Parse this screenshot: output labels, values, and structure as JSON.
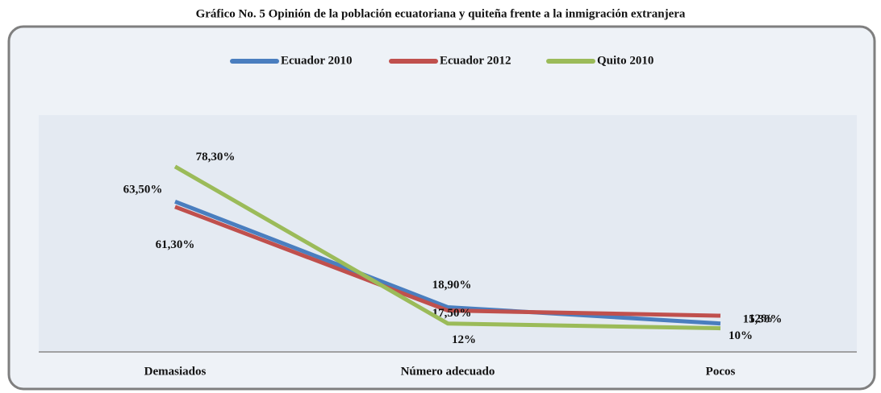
{
  "chart_data": {
    "type": "line",
    "title": "Gráfico No. 5 Opinión de la población ecuatoriana y quiteña frente a la inmigración extranjera",
    "categories": [
      "Demasiados",
      "Número adecuado",
      "Pocos"
    ],
    "series": [
      {
        "name": "Ecuador 2010",
        "color": "#4a7ebf",
        "values": [
          63.5,
          18.9,
          12
        ],
        "value_labels": [
          "63,50%",
          "18,90%",
          "12%"
        ]
      },
      {
        "name": "Ecuador 2012",
        "color": "#c0504d",
        "values": [
          61.3,
          17.5,
          15.3
        ],
        "value_labels": [
          "61,30%",
          "17,50%",
          "15,30%"
        ]
      },
      {
        "name": "Quito 2010",
        "color": "#9bbb59",
        "values": [
          78.3,
          12,
          10
        ],
        "value_labels": [
          "78,30%",
          "12%",
          "10%"
        ]
      }
    ],
    "ylim": [
      0,
      100
    ],
    "legend": "top"
  }
}
